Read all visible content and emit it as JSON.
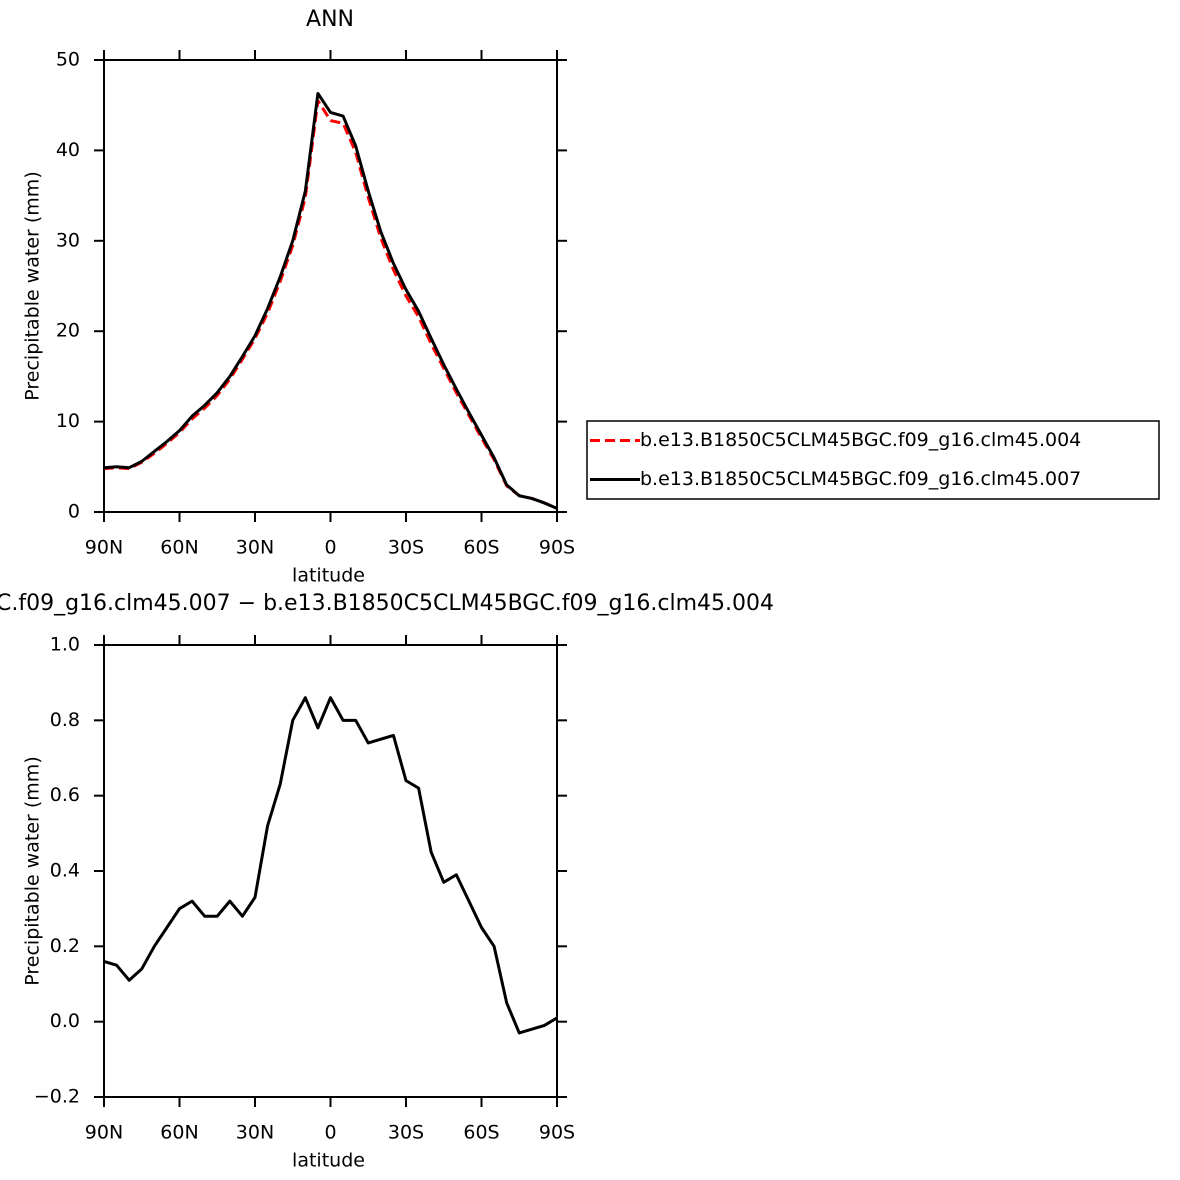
{
  "chart_data": [
    {
      "type": "line",
      "title": "ANN",
      "xlabel": "latitude",
      "ylabel": "Precipitable water (mm)",
      "x": [
        90,
        85,
        80,
        75,
        70,
        65,
        60,
        55,
        50,
        45,
        40,
        35,
        30,
        25,
        20,
        15,
        10,
        5,
        0,
        -5,
        -10,
        -15,
        -20,
        -25,
        -30,
        -35,
        -40,
        -45,
        -50,
        -55,
        -60,
        -65,
        -70,
        -75,
        -80,
        -85,
        -90
      ],
      "series": [
        {
          "name": "b.e13.B1850C5CLM45BGC.f09_g16.clm45.004",
          "color": "#ff0000",
          "dash": true,
          "values": [
            4.8,
            4.9,
            4.8,
            5.5,
            6.5,
            7.6,
            8.8,
            10.3,
            11.5,
            12.9,
            14.7,
            16.9,
            19.2,
            22.0,
            25.5,
            29.5,
            34.8,
            45.5,
            43.3,
            43.0,
            39.8,
            34.8,
            30.3,
            26.8,
            23.9,
            21.6,
            18.6,
            15.9,
            13.2,
            10.7,
            8.2,
            5.8,
            2.9,
            1.8,
            1.5,
            1.0,
            0.4
          ]
        },
        {
          "name": "b.e13.B1850C5CLM45BGC.f09_g16.clm45.007",
          "color": "#000000",
          "dash": false,
          "values": [
            4.9,
            5.0,
            4.9,
            5.6,
            6.7,
            7.8,
            9.0,
            10.6,
            11.8,
            13.2,
            15.0,
            17.2,
            19.5,
            22.5,
            26.0,
            30.0,
            35.5,
            46.3,
            44.2,
            43.8,
            40.5,
            35.5,
            31.0,
            27.5,
            24.6,
            22.2,
            19.2,
            16.3,
            13.6,
            11.0,
            8.5,
            6.0,
            3.0,
            1.8,
            1.5,
            1.0,
            0.4
          ]
        }
      ],
      "xlim": [
        90,
        -90
      ],
      "xticks": [
        {
          "value": 90,
          "label": "90N"
        },
        {
          "value": 60,
          "label": "60N"
        },
        {
          "value": 30,
          "label": "30N"
        },
        0,
        {
          "value": -30,
          "label": "30S"
        },
        {
          "value": -60,
          "label": "60S"
        },
        {
          "value": -90,
          "label": "90S"
        }
      ],
      "ylim": [
        0,
        50
      ],
      "yticks": [
        0,
        10,
        20,
        30,
        40,
        50
      ],
      "legend": "right"
    },
    {
      "type": "line",
      "title": "C.f09_g16.clm45.007 − b.e13.B1850C5CLM45BGC.f09_g16.clm45.004",
      "xlabel": "latitude",
      "ylabel": "Precipitable water (mm)",
      "x": [
        90,
        85,
        80,
        75,
        70,
        65,
        60,
        55,
        50,
        45,
        40,
        35,
        30,
        25,
        20,
        15,
        10,
        5,
        0,
        -5,
        -10,
        -15,
        -20,
        -25,
        -30,
        -35,
        -40,
        -45,
        -50,
        -55,
        -60,
        -65,
        -70,
        -75,
        -80,
        -85,
        -90
      ],
      "series": [
        {
          "color": "#000000",
          "dash": false,
          "values": [
            0.16,
            0.15,
            0.11,
            0.14,
            0.2,
            0.25,
            0.3,
            0.32,
            0.28,
            0.28,
            0.32,
            0.28,
            0.33,
            0.52,
            0.63,
            0.8,
            0.86,
            0.78,
            0.86,
            0.8,
            0.8,
            0.74,
            0.75,
            0.76,
            0.64,
            0.62,
            0.45,
            0.37,
            0.39,
            0.32,
            0.25,
            0.2,
            0.05,
            -0.03,
            -0.02,
            -0.01,
            0.01
          ]
        }
      ],
      "xlim": [
        90,
        -90
      ],
      "xticks": [
        {
          "value": 90,
          "label": "90N"
        },
        {
          "value": 60,
          "label": "60N"
        },
        {
          "value": 30,
          "label": "30N"
        },
        0,
        {
          "value": -30,
          "label": "30S"
        },
        {
          "value": -60,
          "label": "60S"
        },
        {
          "value": -90,
          "label": "90S"
        }
      ],
      "ylim": [
        -0.2,
        1.0
      ],
      "yticks": [
        {
          "value": -0.2,
          "label": "−0.2"
        },
        {
          "value": 0,
          "label": "0.0"
        },
        0.2,
        0.4,
        0.6,
        0.8,
        {
          "value": 1.0,
          "label": "1.0"
        }
      ]
    }
  ]
}
